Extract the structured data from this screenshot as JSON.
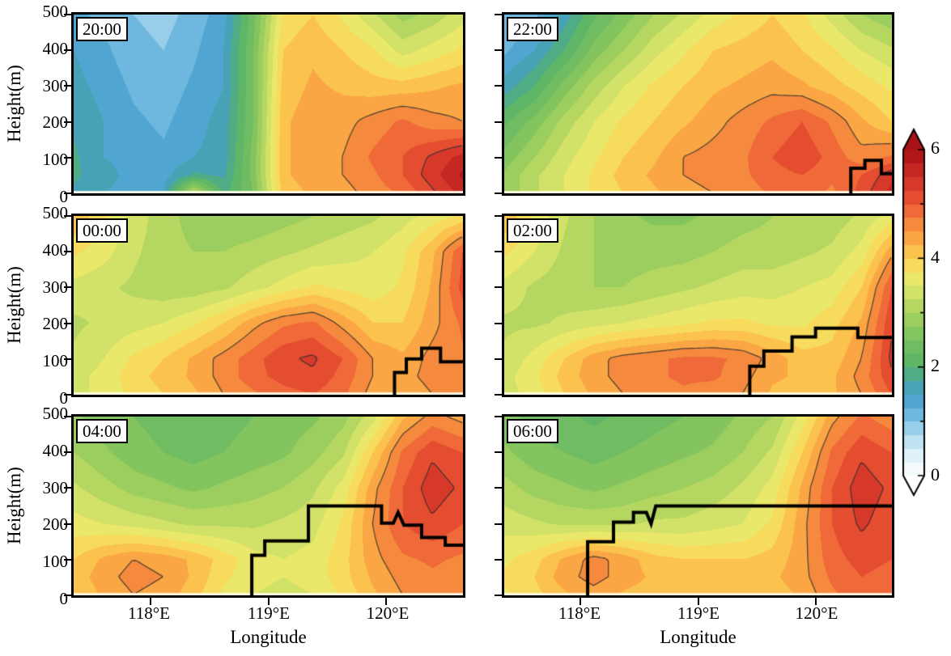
{
  "figure": {
    "axes": {
      "ylabel": "Height(m)",
      "xlabel": "Longitude",
      "ytick_labels": [
        "0",
        "100",
        "200",
        "300",
        "400",
        "500"
      ],
      "xtick_labels": [
        "118°E",
        "119°E",
        "120°E"
      ],
      "xtick_values": [
        118,
        119,
        120
      ],
      "x_min": 117.35,
      "x_max": 120.65,
      "y_min": 0,
      "y_max": 500,
      "y_levels": [
        500,
        400,
        300,
        200,
        100,
        50,
        0
      ]
    },
    "colorbar": {
      "tick_labels": [
        "0",
        "2",
        "4",
        "6"
      ],
      "tick_values": [
        0,
        2,
        4,
        6
      ],
      "min": 0,
      "max": 6,
      "band_step": 0.25,
      "colormap_stops": [
        [
          0.0,
          "#ffffff"
        ],
        [
          0.3,
          "#e8f5fb"
        ],
        [
          0.6,
          "#c4e5f4"
        ],
        [
          0.9,
          "#93cce8"
        ],
        [
          1.2,
          "#62b0da"
        ],
        [
          1.5,
          "#459fcb"
        ],
        [
          1.75,
          "#4aa6a0"
        ],
        [
          2.0,
          "#57b26a"
        ],
        [
          2.5,
          "#77c05f"
        ],
        [
          3.0,
          "#a7d25e"
        ],
        [
          3.4,
          "#d5e268"
        ],
        [
          3.7,
          "#f1ea6a"
        ],
        [
          4.0,
          "#fbd052"
        ],
        [
          4.3,
          "#fbaf46"
        ],
        [
          4.6,
          "#f68c3e"
        ],
        [
          4.9,
          "#ef6637"
        ],
        [
          5.2,
          "#e2452f"
        ],
        [
          5.6,
          "#c62a23"
        ],
        [
          6.0,
          "#a50f15"
        ]
      ]
    },
    "contour_levels": [
      4.5,
      5.25
    ]
  },
  "chart_data": [
    {
      "type": "heatmap",
      "time_label": "20:00",
      "values": [
        [
          1.3,
          1.2,
          1.0,
          0.9,
          1.1,
          1.4,
          2.4,
          3.8,
          4.0,
          3.7,
          3.3,
          2.9,
          3.1,
          3.4
        ],
        [
          1.5,
          1.3,
          1.1,
          1.0,
          1.2,
          1.5,
          2.5,
          4.0,
          4.2,
          4.0,
          3.8,
          3.4,
          3.6,
          3.8
        ],
        [
          1.6,
          1.4,
          1.2,
          1.1,
          1.3,
          1.5,
          2.5,
          4.1,
          4.3,
          4.2,
          4.1,
          4.1,
          4.2,
          4.3
        ],
        [
          1.7,
          1.5,
          1.3,
          1.2,
          1.4,
          1.6,
          2.5,
          4.2,
          4.4,
          4.4,
          4.6,
          4.8,
          4.6,
          4.5
        ],
        [
          1.8,
          1.5,
          1.4,
          1.3,
          1.5,
          1.6,
          2.6,
          4.2,
          4.4,
          4.5,
          4.8,
          5.0,
          5.3,
          5.6
        ],
        [
          1.8,
          1.6,
          1.4,
          1.4,
          1.8,
          1.7,
          2.6,
          4.2,
          4.4,
          4.5,
          4.7,
          5.0,
          5.4,
          5.8
        ],
        [
          1.7,
          1.5,
          1.4,
          1.5,
          3.3,
          1.9,
          2.5,
          4.1,
          4.3,
          4.4,
          4.6,
          4.8,
          5.2,
          5.6
        ]
      ],
      "thick_line": []
    },
    {
      "type": "heatmap",
      "time_label": "22:00",
      "values": [
        [
          1.0,
          1.2,
          1.6,
          2.2,
          2.6,
          3.0,
          3.3,
          3.6,
          3.8,
          4.0,
          3.8,
          3.4,
          3.0,
          2.8
        ],
        [
          1.2,
          1.5,
          2.0,
          2.6,
          3.0,
          3.4,
          3.7,
          4.0,
          4.1,
          4.2,
          4.0,
          3.8,
          3.5,
          3.3
        ],
        [
          1.6,
          2.0,
          2.6,
          3.1,
          3.5,
          3.8,
          4.0,
          4.2,
          4.3,
          4.4,
          4.3,
          4.1,
          3.9,
          3.7
        ],
        [
          2.2,
          2.6,
          3.1,
          3.5,
          3.8,
          4.0,
          4.2,
          4.4,
          4.6,
          4.8,
          5.0,
          4.7,
          4.3,
          4.0
        ],
        [
          2.6,
          3.0,
          3.4,
          3.7,
          4.0,
          4.2,
          4.5,
          4.6,
          4.7,
          5.0,
          5.2,
          4.9,
          4.6,
          4.8
        ],
        [
          2.8,
          3.2,
          3.5,
          3.8,
          4.1,
          4.3,
          4.5,
          4.6,
          4.7,
          4.9,
          5.0,
          4.8,
          5.0,
          5.4
        ],
        [
          2.8,
          3.2,
          3.5,
          3.8,
          4.0,
          4.2,
          4.4,
          4.5,
          4.6,
          4.8,
          4.9,
          4.7,
          5.1,
          5.6
        ]
      ],
      "thick_line": [
        [
          120.3,
          0
        ],
        [
          120.3,
          70
        ],
        [
          120.42,
          70
        ],
        [
          120.42,
          92
        ],
        [
          120.56,
          92
        ],
        [
          120.56,
          55
        ],
        [
          120.65,
          55
        ]
      ]
    },
    {
      "type": "heatmap",
      "time_label": "00:00",
      "values": [
        [
          4.2,
          3.8,
          3.4,
          3.1,
          2.9,
          2.8,
          2.8,
          2.9,
          3.0,
          3.1,
          3.2,
          3.4,
          3.6,
          3.8
        ],
        [
          3.8,
          3.6,
          3.3,
          3.1,
          3.0,
          3.0,
          3.1,
          3.2,
          3.3,
          3.4,
          3.5,
          3.7,
          4.2,
          5.0
        ],
        [
          3.4,
          3.3,
          3.2,
          3.1,
          3.1,
          3.2,
          3.4,
          3.6,
          3.8,
          3.7,
          3.6,
          3.8,
          4.3,
          5.1
        ],
        [
          3.2,
          3.3,
          3.4,
          3.5,
          3.7,
          4.0,
          4.4,
          4.7,
          4.8,
          4.4,
          4.0,
          4.0,
          4.4,
          4.8
        ],
        [
          3.3,
          3.5,
          3.8,
          4.0,
          4.3,
          4.6,
          4.9,
          5.2,
          5.3,
          5.0,
          4.5,
          4.3,
          4.6,
          4.7
        ],
        [
          3.4,
          3.6,
          3.9,
          4.1,
          4.3,
          4.6,
          4.9,
          5.1,
          5.2,
          4.9,
          4.5,
          4.4,
          4.6,
          4.6
        ],
        [
          3.4,
          3.6,
          3.8,
          4.0,
          4.2,
          4.5,
          4.7,
          4.9,
          5.0,
          4.8,
          4.4,
          4.3,
          4.5,
          4.5
        ]
      ],
      "thick_line": [
        [
          120.07,
          0
        ],
        [
          120.07,
          62
        ],
        [
          120.17,
          62
        ],
        [
          120.17,
          100
        ],
        [
          120.3,
          100
        ],
        [
          120.3,
          130
        ],
        [
          120.46,
          130
        ],
        [
          120.46,
          92
        ],
        [
          120.65,
          92
        ]
      ]
    },
    {
      "type": "heatmap",
      "time_label": "02:00",
      "values": [
        [
          4.2,
          3.7,
          3.3,
          3.0,
          2.8,
          2.7,
          2.7,
          2.8,
          2.9,
          3.0,
          3.0,
          3.1,
          3.3,
          3.6
        ],
        [
          3.8,
          3.5,
          3.2,
          3.0,
          2.9,
          2.9,
          2.9,
          3.0,
          3.1,
          3.1,
          3.2,
          3.3,
          3.6,
          4.4
        ],
        [
          3.4,
          3.2,
          3.1,
          3.0,
          3.0,
          3.1,
          3.2,
          3.3,
          3.4,
          3.4,
          3.5,
          3.6,
          4.0,
          5.0
        ],
        [
          3.2,
          3.2,
          3.3,
          3.4,
          3.5,
          3.6,
          3.7,
          3.8,
          3.8,
          3.7,
          3.7,
          3.9,
          4.3,
          5.2
        ],
        [
          3.3,
          3.6,
          4.0,
          4.4,
          4.6,
          4.7,
          4.8,
          4.8,
          4.7,
          4.4,
          4.1,
          4.1,
          4.5,
          5.3
        ],
        [
          3.4,
          3.7,
          4.1,
          4.4,
          4.6,
          4.7,
          4.8,
          4.8,
          4.6,
          4.3,
          4.2,
          4.2,
          4.6,
          5.2
        ],
        [
          3.4,
          3.6,
          4.0,
          4.3,
          4.5,
          4.6,
          4.7,
          4.6,
          4.5,
          4.2,
          4.1,
          4.2,
          4.5,
          5.0
        ]
      ],
      "thick_line": [
        [
          119.44,
          0
        ],
        [
          119.44,
          80
        ],
        [
          119.56,
          80
        ],
        [
          119.56,
          122
        ],
        [
          119.8,
          122
        ],
        [
          119.8,
          162
        ],
        [
          120.0,
          162
        ],
        [
          120.0,
          186
        ],
        [
          120.36,
          186
        ],
        [
          120.36,
          160
        ],
        [
          120.65,
          160
        ]
      ]
    },
    {
      "type": "heatmap",
      "time_label": "04:00",
      "values": [
        [
          2.8,
          2.6,
          2.5,
          2.4,
          2.3,
          2.4,
          2.5,
          2.6,
          2.7,
          2.9,
          3.4,
          4.2,
          4.6,
          4.4
        ],
        [
          3.0,
          2.8,
          2.6,
          2.5,
          2.4,
          2.5,
          2.6,
          2.7,
          2.9,
          3.2,
          4.0,
          4.8,
          5.2,
          5.0
        ],
        [
          3.3,
          3.1,
          2.9,
          2.8,
          2.7,
          2.8,
          2.9,
          3.0,
          3.2,
          3.6,
          4.4,
          5.0,
          5.4,
          5.2
        ],
        [
          3.6,
          3.5,
          3.4,
          3.3,
          3.2,
          3.2,
          3.2,
          3.3,
          3.4,
          3.8,
          4.5,
          5.0,
          5.2,
          5.0
        ],
        [
          4.0,
          4.3,
          4.5,
          4.4,
          4.2,
          3.9,
          3.6,
          3.5,
          3.6,
          3.9,
          4.4,
          4.7,
          4.8,
          4.7
        ],
        [
          4.1,
          4.4,
          4.6,
          4.5,
          4.2,
          3.8,
          3.6,
          3.5,
          3.6,
          3.9,
          4.3,
          4.6,
          4.7,
          4.6
        ],
        [
          4.0,
          4.3,
          4.5,
          4.4,
          4.1,
          3.7,
          3.5,
          3.4,
          3.5,
          3.8,
          4.2,
          4.5,
          4.6,
          4.5
        ]
      ],
      "thick_line": [
        [
          118.86,
          0
        ],
        [
          118.86,
          112
        ],
        [
          118.97,
          112
        ],
        [
          118.97,
          152
        ],
        [
          119.34,
          152
        ],
        [
          119.34,
          250
        ],
        [
          119.96,
          250
        ],
        [
          119.96,
          202
        ],
        [
          120.06,
          202
        ],
        [
          120.1,
          232
        ],
        [
          120.15,
          196
        ],
        [
          120.3,
          196
        ],
        [
          120.3,
          162
        ],
        [
          120.5,
          162
        ],
        [
          120.5,
          140
        ],
        [
          120.65,
          140
        ]
      ]
    },
    {
      "type": "heatmap",
      "time_label": "06:00",
      "values": [
        [
          2.6,
          2.4,
          2.3,
          2.2,
          2.3,
          2.4,
          2.5,
          2.6,
          2.8,
          3.0,
          3.6,
          4.4,
          4.8,
          4.6
        ],
        [
          2.8,
          2.6,
          2.5,
          2.4,
          2.5,
          2.6,
          2.7,
          2.8,
          3.0,
          3.3,
          4.0,
          4.8,
          5.2,
          5.0
        ],
        [
          3.1,
          2.9,
          2.8,
          2.7,
          2.8,
          2.9,
          3.0,
          3.1,
          3.3,
          3.6,
          4.3,
          5.0,
          5.4,
          5.2
        ],
        [
          3.4,
          3.3,
          3.2,
          3.2,
          3.2,
          3.3,
          3.3,
          3.4,
          3.5,
          3.8,
          4.4,
          5.0,
          5.3,
          5.1
        ],
        [
          3.7,
          3.9,
          4.3,
          4.6,
          4.4,
          4.1,
          4.0,
          4.0,
          4.0,
          4.1,
          4.4,
          4.9,
          5.1,
          5.0
        ],
        [
          3.8,
          4.0,
          4.4,
          4.6,
          4.4,
          4.2,
          4.1,
          4.1,
          4.1,
          4.2,
          4.4,
          4.8,
          5.0,
          4.9
        ],
        [
          3.7,
          3.9,
          4.2,
          4.4,
          4.2,
          4.1,
          4.0,
          4.0,
          4.0,
          4.1,
          4.3,
          4.7,
          4.9,
          4.8
        ]
      ],
      "thick_line": [
        [
          118.06,
          0
        ],
        [
          118.06,
          150
        ],
        [
          118.28,
          150
        ],
        [
          118.28,
          205
        ],
        [
          118.45,
          205
        ],
        [
          118.45,
          232
        ],
        [
          118.56,
          232
        ],
        [
          118.6,
          200
        ],
        [
          118.64,
          250
        ],
        [
          120.65,
          250
        ]
      ]
    }
  ]
}
